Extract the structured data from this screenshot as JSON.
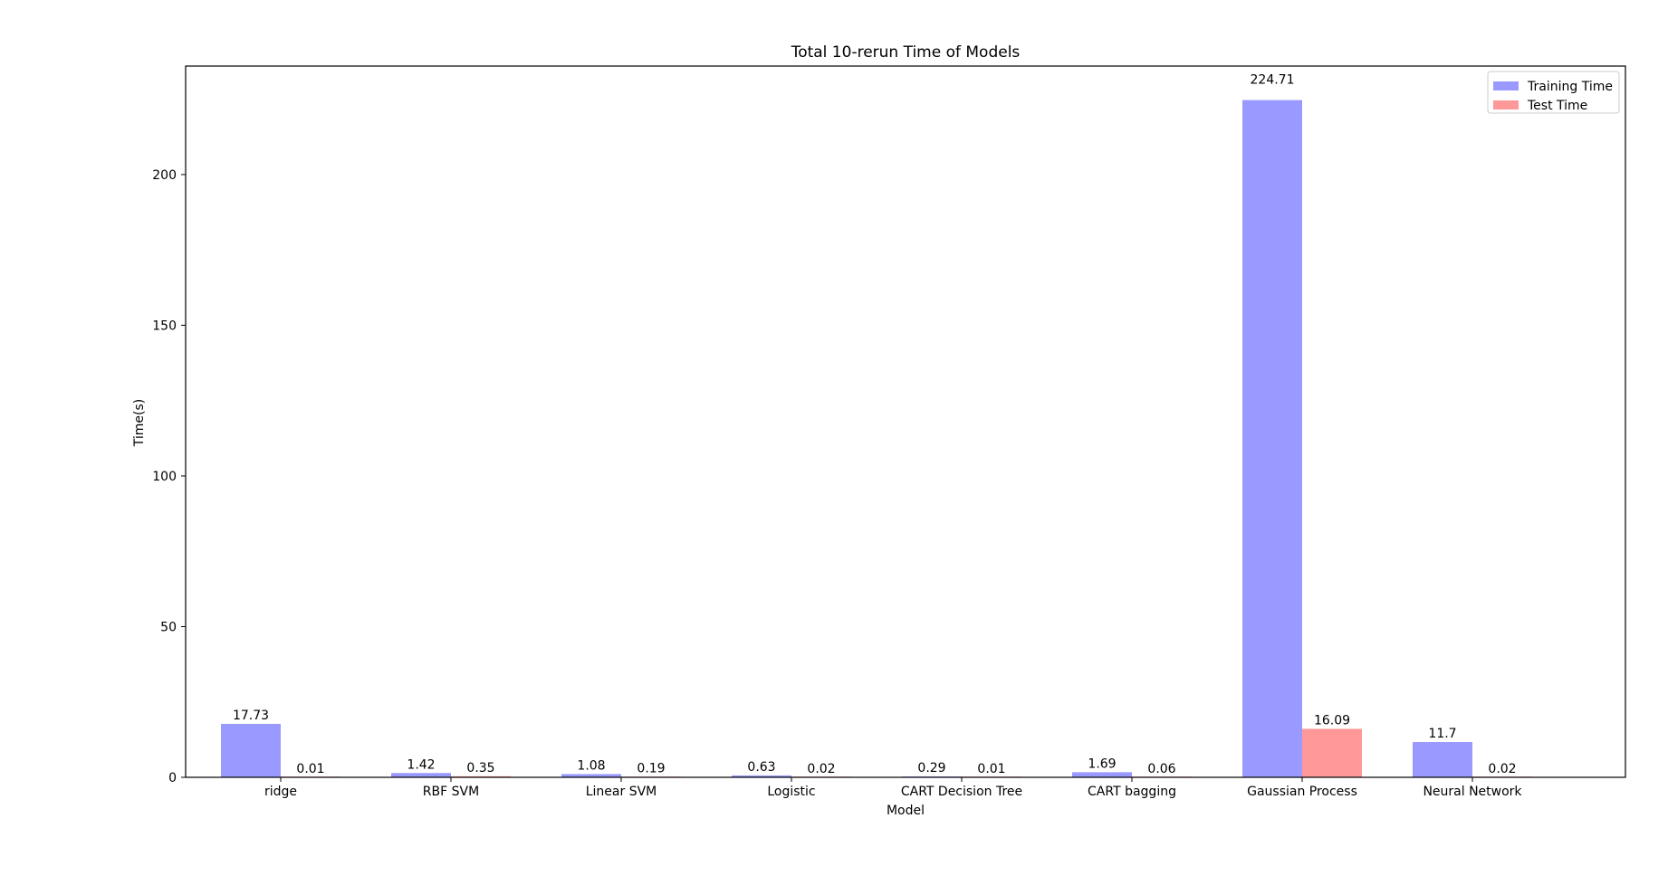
{
  "chart_data": {
    "type": "bar",
    "title": "Total 10-rerun Time of Models",
    "xlabel": "Model",
    "ylabel": "Time(s)",
    "ylim": [
      0,
      236
    ],
    "yticks": [
      0,
      50,
      100,
      150,
      200
    ],
    "grid": false,
    "legend_position": "top-right",
    "categories": [
      "ridge",
      "RBF SVM",
      "Linear SVM",
      "Logistic",
      "CART Decision Tree",
      "CART bagging",
      "Gaussian Process",
      "Neural Network"
    ],
    "series": [
      {
        "name": "Training Time",
        "color": "#9999ff",
        "values": [
          17.73,
          1.42,
          1.08,
          0.63,
          0.29,
          1.69,
          224.71,
          11.7
        ],
        "labels": [
          "17.73",
          "1.42",
          "1.08",
          "0.63",
          "0.29",
          "1.69",
          "224.71",
          "11.7"
        ]
      },
      {
        "name": "Test Time",
        "color": "#ff9999",
        "values": [
          0.01,
          0.35,
          0.19,
          0.02,
          0.01,
          0.06,
          16.09,
          0.02
        ],
        "labels": [
          "0.01",
          "0.35",
          "0.19",
          "0.02",
          "0.01",
          "0.06",
          "16.09",
          "0.02"
        ]
      }
    ]
  }
}
